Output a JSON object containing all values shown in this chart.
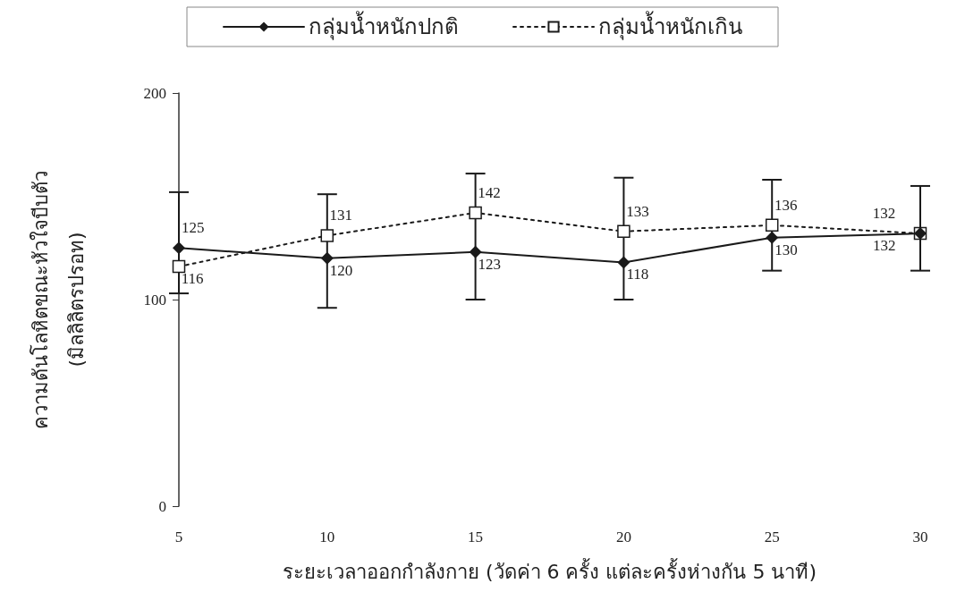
{
  "chart_data": {
    "type": "line",
    "xlabel": "ระยะเวลาออกกำลังกาย (วัดค่า 6 ครั้ง แต่ละครั้งห่างกัน 5 นาที)",
    "ylabel": "ความดันโลหิตขณะหัวใจบีบตัว\n(มิลลิลิตรปรอท)",
    "x": [
      5,
      10,
      15,
      20,
      25,
      30
    ],
    "series": [
      {
        "name": "กลุ่มน้ำหนักปกติ",
        "color": "#1a1a1a",
        "marker": "diamond",
        "line_style": "solid",
        "values": [
          125,
          120,
          123,
          118,
          130,
          132
        ],
        "errors": [
          [
            103,
            152
          ],
          [
            96,
            151
          ],
          [
            100,
            161
          ],
          [
            100,
            159
          ],
          [
            114,
            158
          ],
          [
            114,
            155
          ]
        ]
      },
      {
        "name": "กลุ่มน้ำหนักเกิน",
        "color": "#1a1a1a",
        "marker": "square",
        "line_style": "dotted",
        "values": [
          116,
          131,
          142,
          133,
          136,
          132
        ]
      }
    ],
    "xlim": [
      5,
      30
    ],
    "xticks": [
      5,
      10,
      15,
      20,
      25,
      30
    ],
    "ylim": [
      0,
      200
    ],
    "yticks": [
      0,
      100,
      200
    ],
    "grid": false,
    "legend": "top",
    "data_labels": true
  }
}
